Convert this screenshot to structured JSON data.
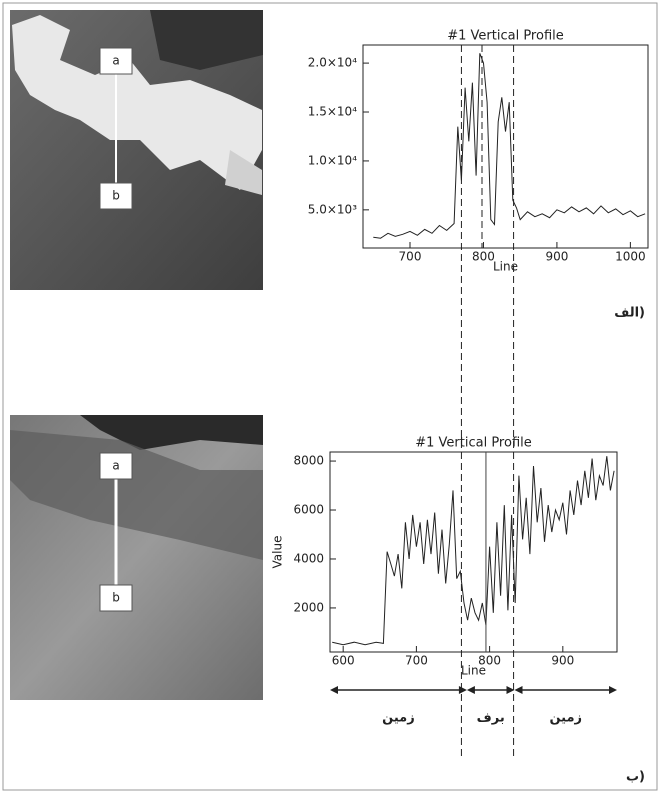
{
  "images": [
    {
      "top_label": "a",
      "bottom_label": "b"
    },
    {
      "top_label": "a",
      "bottom_label": "b"
    }
  ],
  "panel_labels": [
    "الف)",
    "ب)"
  ],
  "chart_data": [
    {
      "type": "line",
      "title": "#1 Vertical Profile",
      "x_label": "Line",
      "color": "#222",
      "x": [
        650,
        660,
        670,
        680,
        690,
        700,
        710,
        720,
        730,
        740,
        750,
        760,
        765,
        770,
        775,
        780,
        785,
        790,
        795,
        800,
        805,
        810,
        815,
        820,
        825,
        830,
        835,
        840,
        845,
        850,
        860,
        870,
        880,
        890,
        900,
        910,
        920,
        930,
        940,
        950,
        960,
        970,
        980,
        990,
        1000,
        1010,
        1020
      ],
      "values": [
        2200,
        2100,
        2600,
        2300,
        2500,
        2800,
        2400,
        3000,
        2600,
        3400,
        2900,
        3600,
        13500,
        8000,
        17500,
        12000,
        18000,
        8500,
        21000,
        20000,
        16000,
        4000,
        3500,
        14000,
        16500,
        13000,
        16000,
        6000,
        5200,
        4000,
        4800,
        4300,
        4600,
        4200,
        5000,
        4700,
        5300,
        4800,
        5200,
        4600,
        5400,
        4700,
        5100,
        4500,
        4900,
        4300,
        4600
      ],
      "xlim": [
        636,
        1024
      ],
      "xticks": [
        700,
        800,
        900,
        1000
      ],
      "ylim": [
        1100,
        21850
      ],
      "yticks": [
        {
          "value": 5000,
          "label": "5.0×10³"
        },
        {
          "value": 10000,
          "label": "1.0×10⁴"
        },
        {
          "value": 15000,
          "label": "1.5×10⁴"
        },
        {
          "value": 20000,
          "label": "2.0×10⁴"
        }
      ],
      "boundary_lines": [
        770,
        798,
        841
      ]
    },
    {
      "type": "line",
      "title": "#1 Vertical Profile",
      "x_label": "Line",
      "y_label": "Value",
      "color": "#222",
      "x": [
        585,
        600,
        615,
        630,
        645,
        655,
        660,
        665,
        670,
        675,
        680,
        685,
        690,
        695,
        700,
        705,
        710,
        715,
        720,
        725,
        730,
        735,
        740,
        745,
        750,
        755,
        760,
        765,
        770,
        775,
        780,
        785,
        790,
        795,
        800,
        805,
        810,
        815,
        820,
        825,
        830,
        835,
        840,
        845,
        850,
        855,
        860,
        865,
        870,
        875,
        880,
        885,
        890,
        895,
        900,
        905,
        910,
        915,
        920,
        925,
        930,
        935,
        940,
        945,
        950,
        955,
        960,
        965,
        970
      ],
      "values": [
        600,
        500,
        600,
        500,
        600,
        550,
        4300,
        3800,
        3300,
        4200,
        2800,
        5500,
        4000,
        5800,
        4500,
        5500,
        3800,
        5600,
        4200,
        5900,
        3400,
        5200,
        3000,
        4600,
        6800,
        3200,
        3500,
        2200,
        1500,
        2400,
        1800,
        1500,
        2200,
        1300,
        4500,
        1800,
        5500,
        2500,
        6200,
        1900,
        5800,
        2200,
        7400,
        4800,
        6500,
        4200,
        7800,
        5500,
        6900,
        4700,
        6200,
        5100,
        6000,
        5600,
        6300,
        5000,
        6800,
        5800,
        7200,
        6200,
        7600,
        6500,
        8100,
        6400,
        7400,
        7000,
        8200,
        6800,
        7600
      ],
      "xlim": [
        582,
        974
      ],
      "xticks": [
        600,
        700,
        800,
        900
      ],
      "ylim": [
        200,
        8370
      ],
      "yticks": [
        2000,
        4000,
        6000,
        8000
      ],
      "marker_line": 795,
      "regions": [
        {
          "label": "زمین",
          "range": [
            582,
            769
          ]
        },
        {
          "label": "برف",
          "range": [
            769,
            834
          ]
        },
        {
          "label": "زمین",
          "range": [
            834,
            974
          ]
        }
      ]
    }
  ]
}
